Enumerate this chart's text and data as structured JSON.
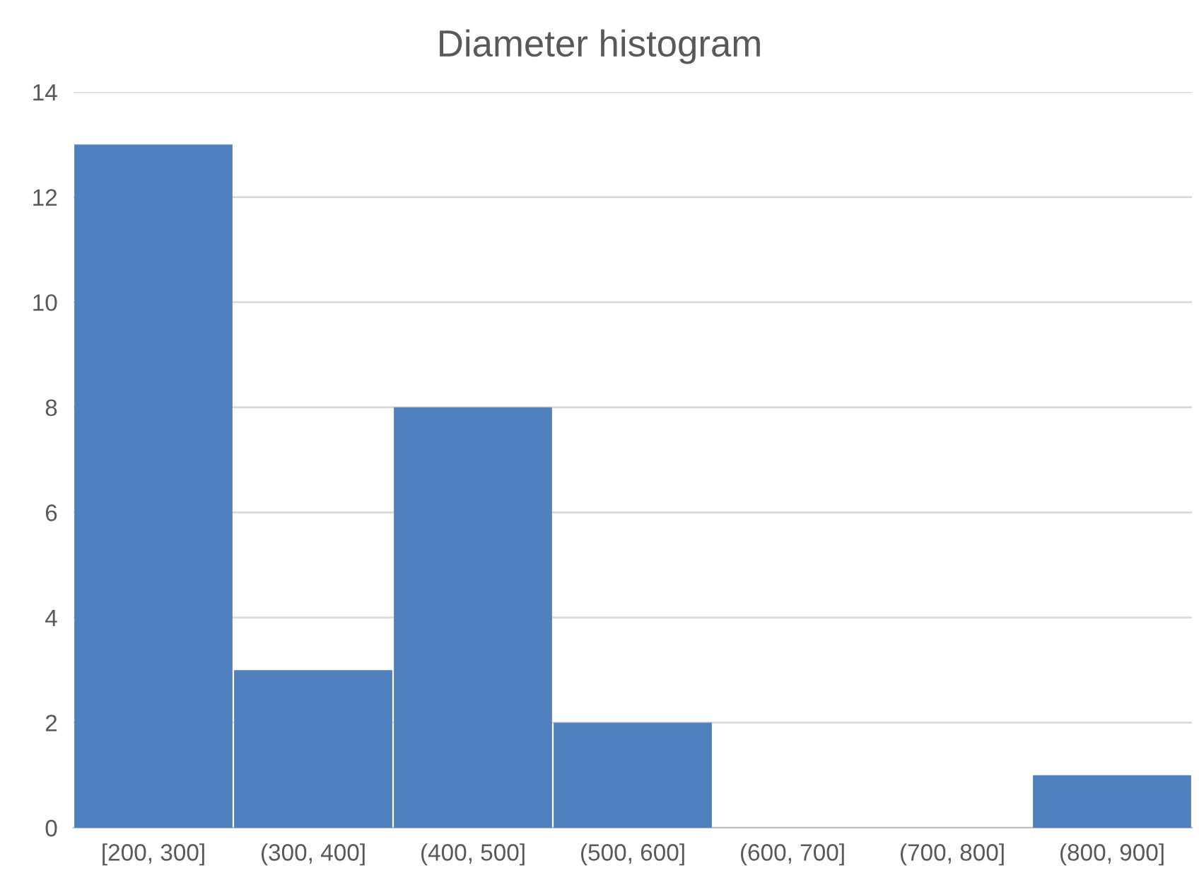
{
  "chart_data": {
    "type": "bar",
    "title": "Diameter histogram",
    "categories": [
      "[200, 300]",
      "(300, 400]",
      "(400, 500]",
      "(500, 600]",
      "(600, 700]",
      "(700, 800]",
      "(800, 900]"
    ],
    "values": [
      13,
      3,
      8,
      2,
      0,
      0,
      1
    ],
    "color": "#4f80bd",
    "ylim": [
      0,
      14
    ],
    "yticks": [
      0,
      2,
      4,
      6,
      8,
      10,
      12,
      14
    ],
    "grid": "y"
  }
}
